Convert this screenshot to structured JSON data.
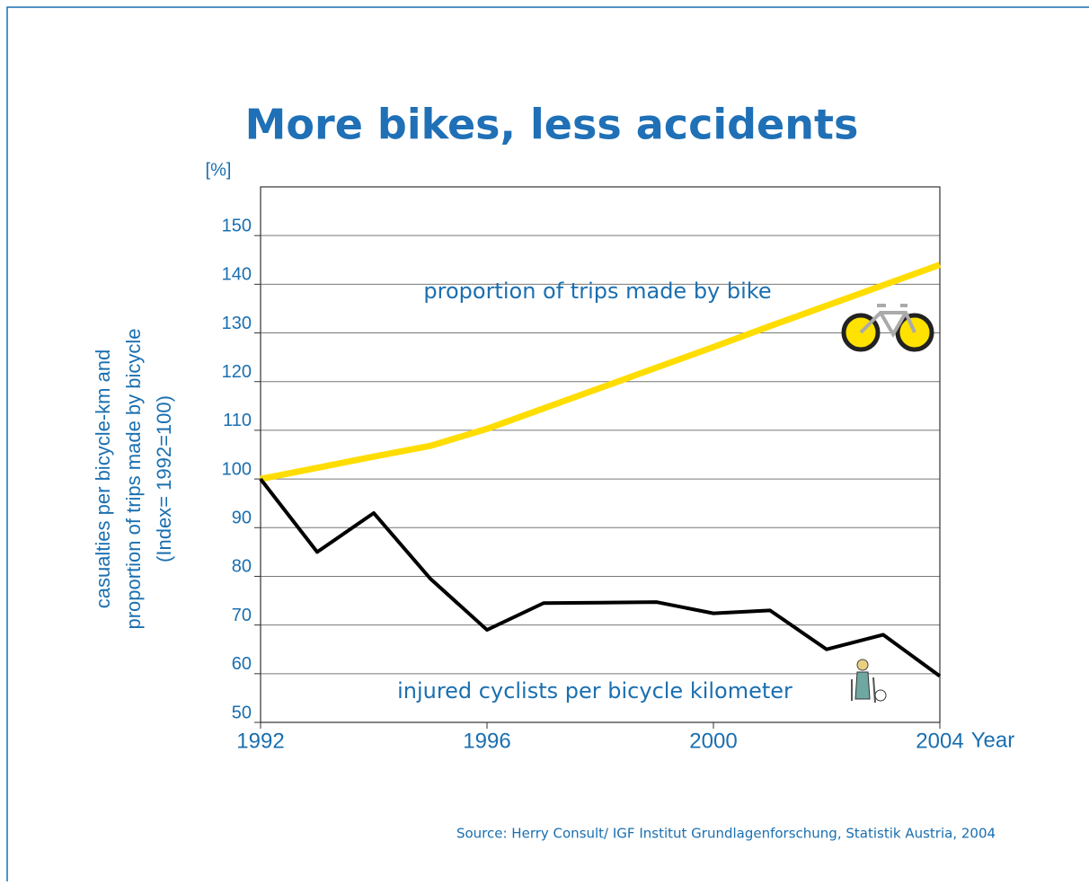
{
  "chart_data": {
    "type": "line",
    "title": "More bikes, less accidents",
    "y_unit": "[%]",
    "ylabel": [
      "casualties per bicycle-km and",
      "proportion of trips made by bicycle",
      "(Index= 1992=100)"
    ],
    "xlabel": "Year",
    "source": "Source: Herry Consult/ IGF Institut Grundlagenforschung, Statistik Austria, 2004",
    "x": [
      1992,
      1993,
      1994,
      1995,
      1996,
      1997,
      1998,
      1999,
      2000,
      2001,
      2002,
      2003,
      2004
    ],
    "series": [
      {
        "name": "proportion of trips made by bike",
        "color": "#ffdd00",
        "values": [
          100,
          102.3,
          104.6,
          106.8,
          110.3,
          114.5,
          118.7,
          122.9,
          127.1,
          131.4,
          135.6,
          139.8,
          144
        ]
      },
      {
        "name": "injured cyclists per bicycle kilometer",
        "color": "#000000",
        "values": [
          100,
          85,
          93,
          79.5,
          69,
          74.5,
          74.6,
          74.7,
          72.4,
          73,
          65,
          68,
          59.5
        ]
      }
    ],
    "xlim": [
      1992,
      2004
    ],
    "xticks": [
      1992,
      1996,
      2000,
      2004
    ],
    "ylim": [
      50,
      160
    ],
    "yticks": [
      50,
      60,
      70,
      80,
      90,
      100,
      110,
      120,
      130,
      140,
      150
    ],
    "grid": true
  }
}
